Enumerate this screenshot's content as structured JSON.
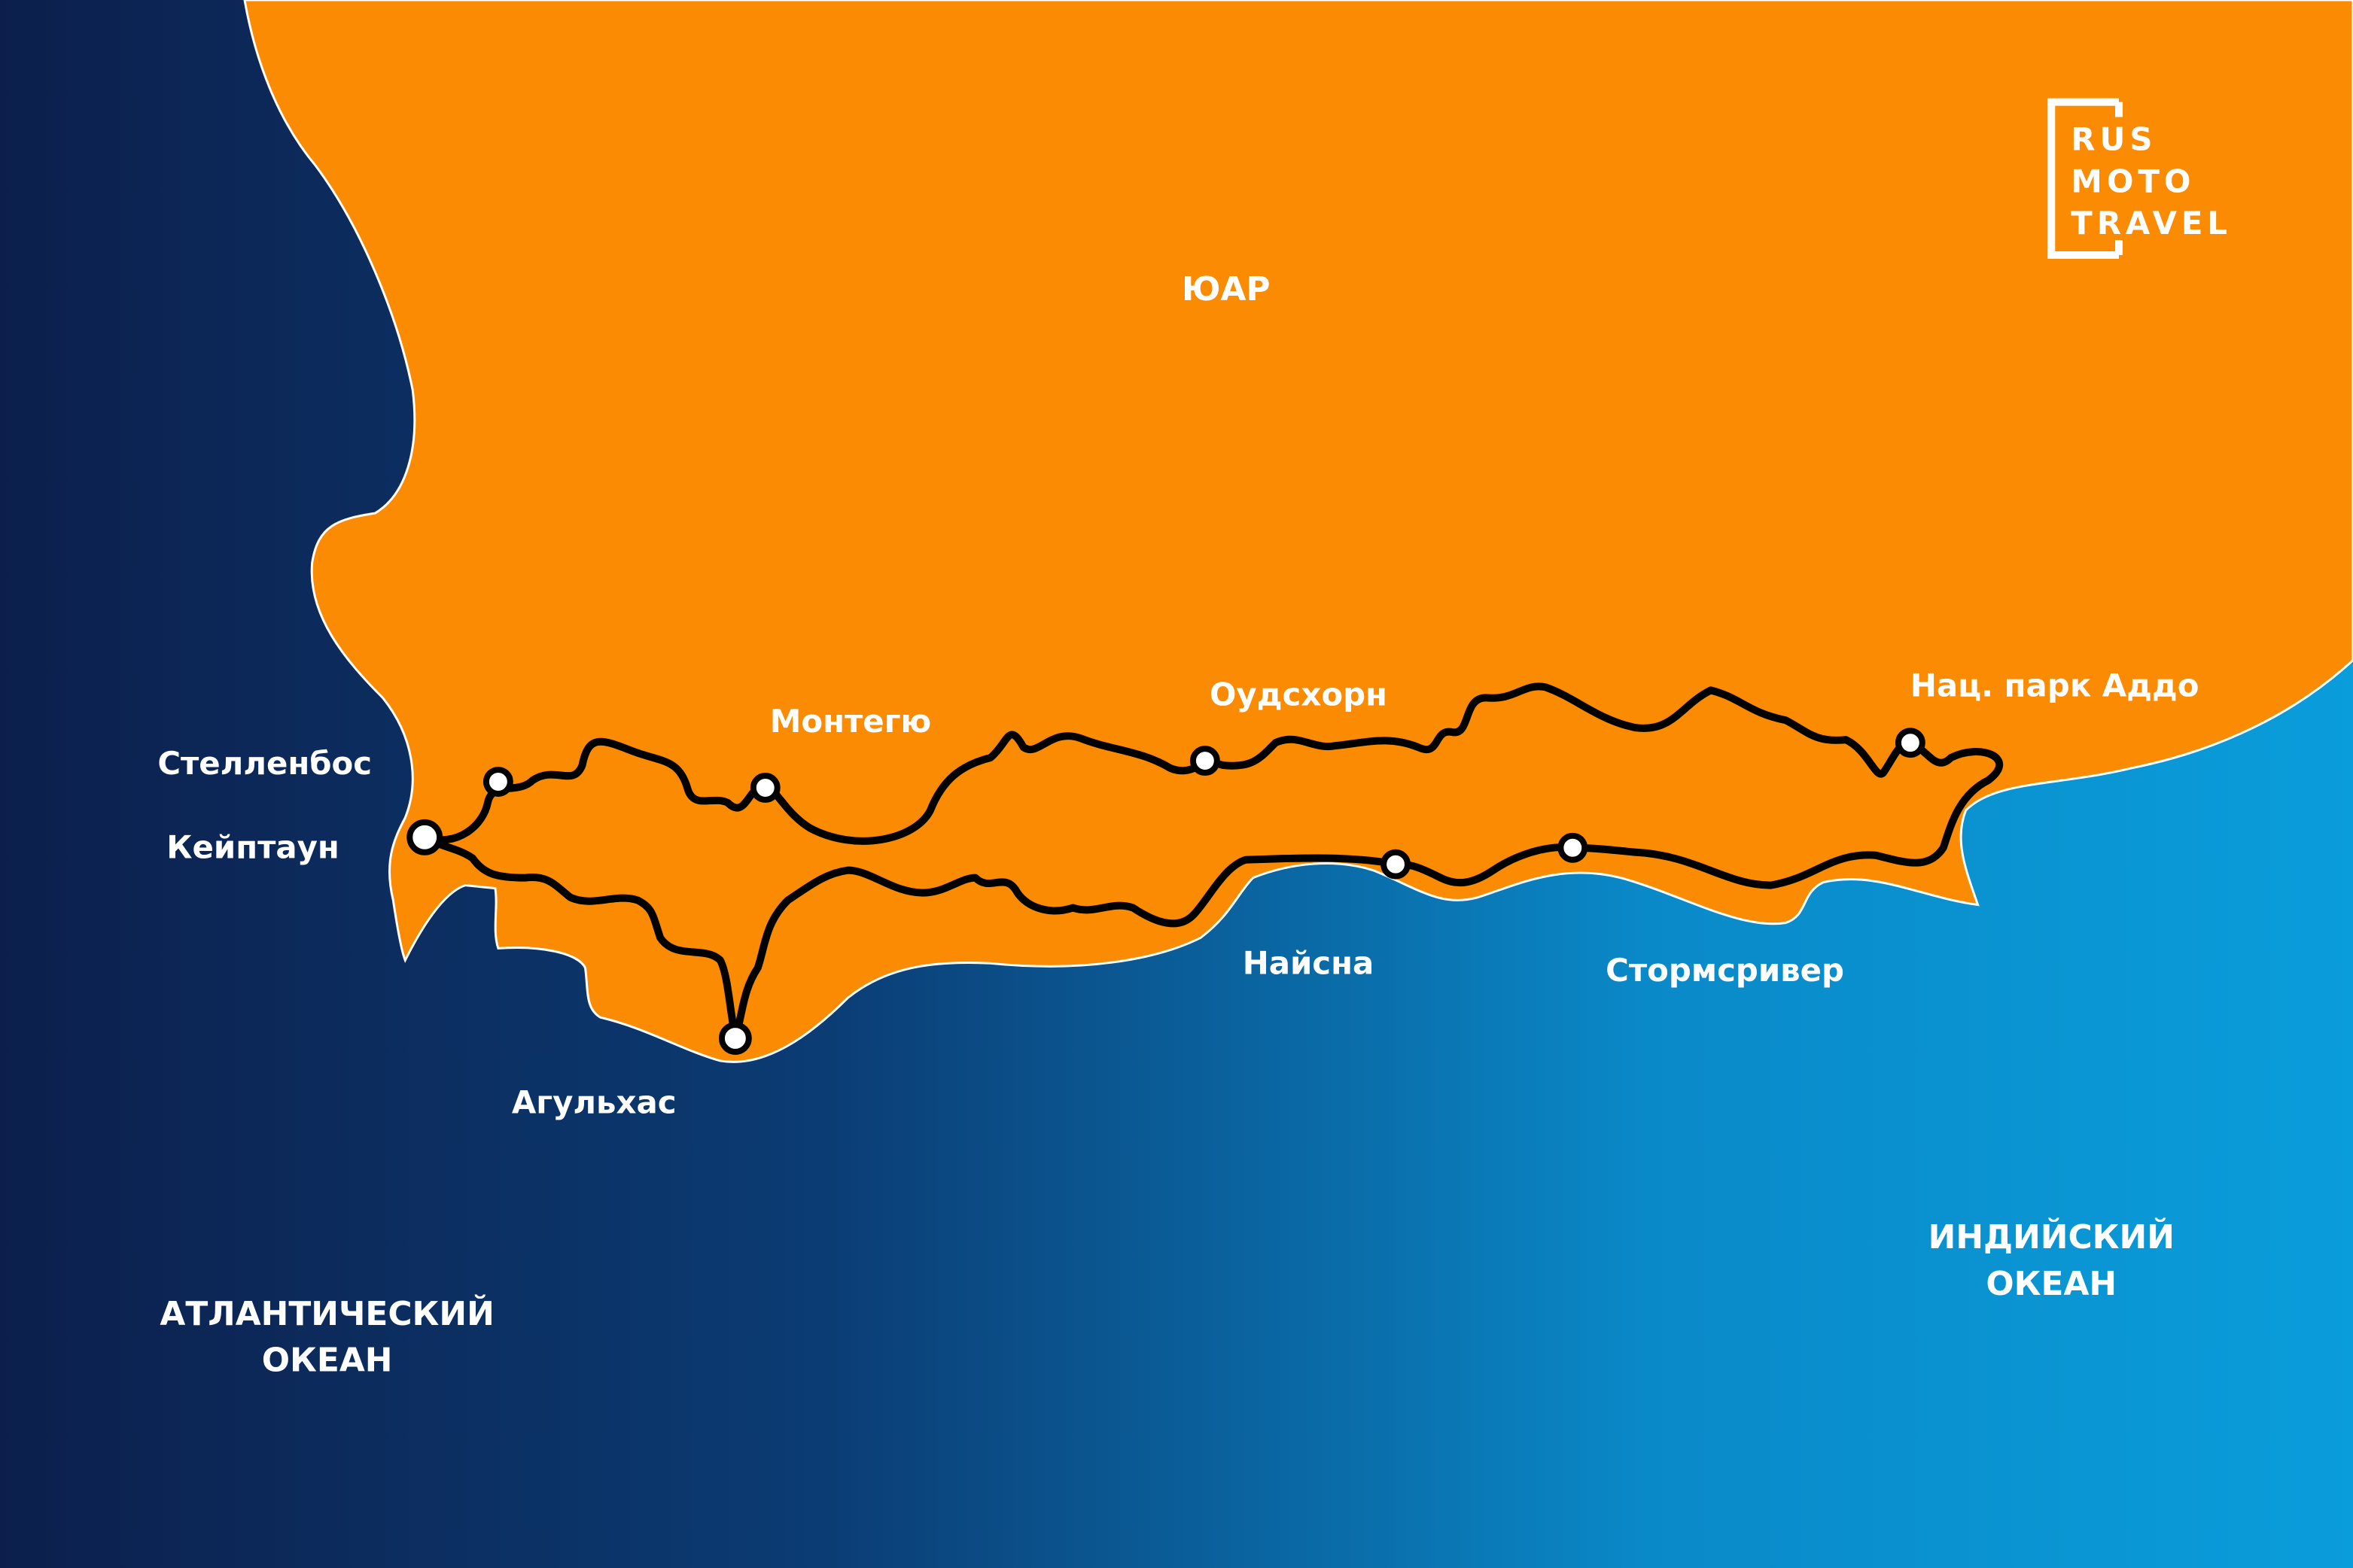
{
  "map": {
    "country": "ЮАР",
    "oceans": [
      {
        "lines": [
          "АТЛАНТИЧЕСКИЙ",
          "ОКЕАН"
        ]
      },
      {
        "lines": [
          "ИНДИЙСКИЙ",
          "ОКЕАН"
        ]
      }
    ],
    "cities": [
      "Стелленбос",
      "Кейптаун",
      "Монтегю",
      "Оудсхорн",
      "Нац. парк Аддо",
      "Найсна",
      "Стормсривер",
      "Агульхас"
    ],
    "logo": [
      "RUS",
      "MOTO",
      "TRAVEL"
    ]
  }
}
